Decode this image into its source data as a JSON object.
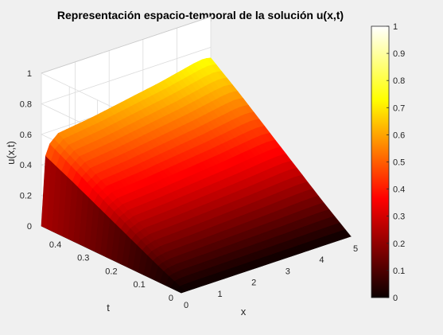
{
  "chart_data": {
    "type": "surface",
    "title": "Representación espacio-temporal de la solución u(x,t)",
    "xlabel": "x",
    "ylabel": "t",
    "zlabel": "u(x,t)",
    "xlim": [
      0,
      5
    ],
    "ylim": [
      0,
      0.5
    ],
    "zlim": [
      0,
      1
    ],
    "xticks": [
      "0",
      "1",
      "2",
      "3",
      "4",
      "5"
    ],
    "yticks": [
      "0",
      "0.1",
      "0.2",
      "0.3",
      "0.4"
    ],
    "zticks": [
      "0",
      "0.2",
      "0.4",
      "0.6",
      "0.8",
      "1"
    ],
    "grid": true,
    "colormap": "hot",
    "colorbar": {
      "limits": [
        0,
        1
      ],
      "ticks": [
        "0",
        "0.1",
        "0.2",
        "0.3",
        "0.4",
        "0.5",
        "0.6",
        "0.7",
        "0.8",
        "0.9",
        "1"
      ]
    },
    "surface_profile": {
      "t_max_slice": {
        "x": [
          0,
          0.05,
          0.15,
          0.5,
          1.5,
          2.5,
          3.5,
          4.5,
          4.8,
          5
        ],
        "u": [
          0,
          0.3,
          0.5,
          0.57,
          0.6,
          0.64,
          0.68,
          0.73,
          0.74,
          0.73
        ]
      },
      "x_max_slice": {
        "t": [
          0,
          0.1,
          0.2,
          0.3,
          0.4,
          0.5
        ],
        "u": [
          0,
          0.14,
          0.29,
          0.44,
          0.59,
          0.73
        ]
      }
    }
  }
}
